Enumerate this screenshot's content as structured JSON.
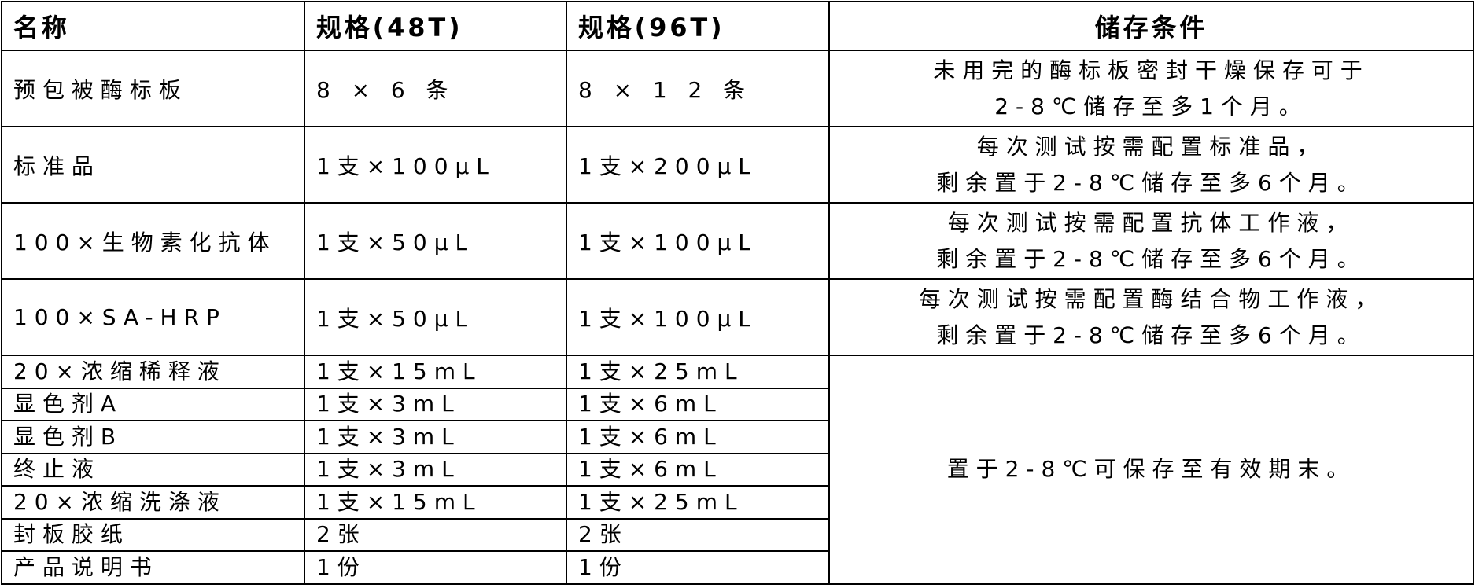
{
  "headers": [
    "名称",
    "规格(48T)",
    "规格(96T)",
    "储存条件"
  ],
  "rows": [
    {
      "name": "预包被酶标板",
      "spec48": "8 × 6 条",
      "spec96": "8 × 1 2 条",
      "storage": [
        "未用完的酶标板密封干燥保存可于",
        "2-8℃储存至多1个月。"
      ]
    },
    {
      "name": "标准品",
      "spec48": "1支×100µL",
      "spec96": "1支×200µL",
      "storage": [
        "每次测试按需配置标准品，",
        "剩余置于2-8℃储存至多6个月。"
      ]
    },
    {
      "name": "100×生物素化抗体",
      "spec48": "1支×50µL",
      "spec96": "1支×100µL",
      "storage": [
        "每次测试按需配置抗体工作液，",
        "剩余置于2-8℃储存至多6个月。"
      ]
    },
    {
      "name": "100×SA-HRP",
      "spec48": "1支×50µL",
      "spec96": "1支×100µL",
      "storage": [
        "每次测试按需配置酶结合物工作液，",
        "剩余置于2-8℃储存至多6个月。"
      ]
    },
    {
      "name": "20×浓缩稀释液",
      "spec48": "1支×15mL",
      "spec96": "1支×25mL"
    },
    {
      "name": "显色剂A",
      "spec48": "1支×3mL",
      "spec96": "1支×6mL"
    },
    {
      "name": "显色剂B",
      "spec48": "1支×3mL",
      "spec96": "1支×6mL"
    },
    {
      "name": "终止液",
      "spec48": "1支×3mL",
      "spec96": "1支×6mL"
    },
    {
      "name": "20×浓缩洗涤液",
      "spec48": "1支×15mL",
      "spec96": "1支×25mL"
    },
    {
      "name": "封板胶纸",
      "spec48": "2张",
      "spec96": "2张"
    },
    {
      "name": "产品说明书",
      "spec48": "1份",
      "spec96": "1份"
    }
  ],
  "shared_storage": "置于2-8℃可保存至有效期末。"
}
